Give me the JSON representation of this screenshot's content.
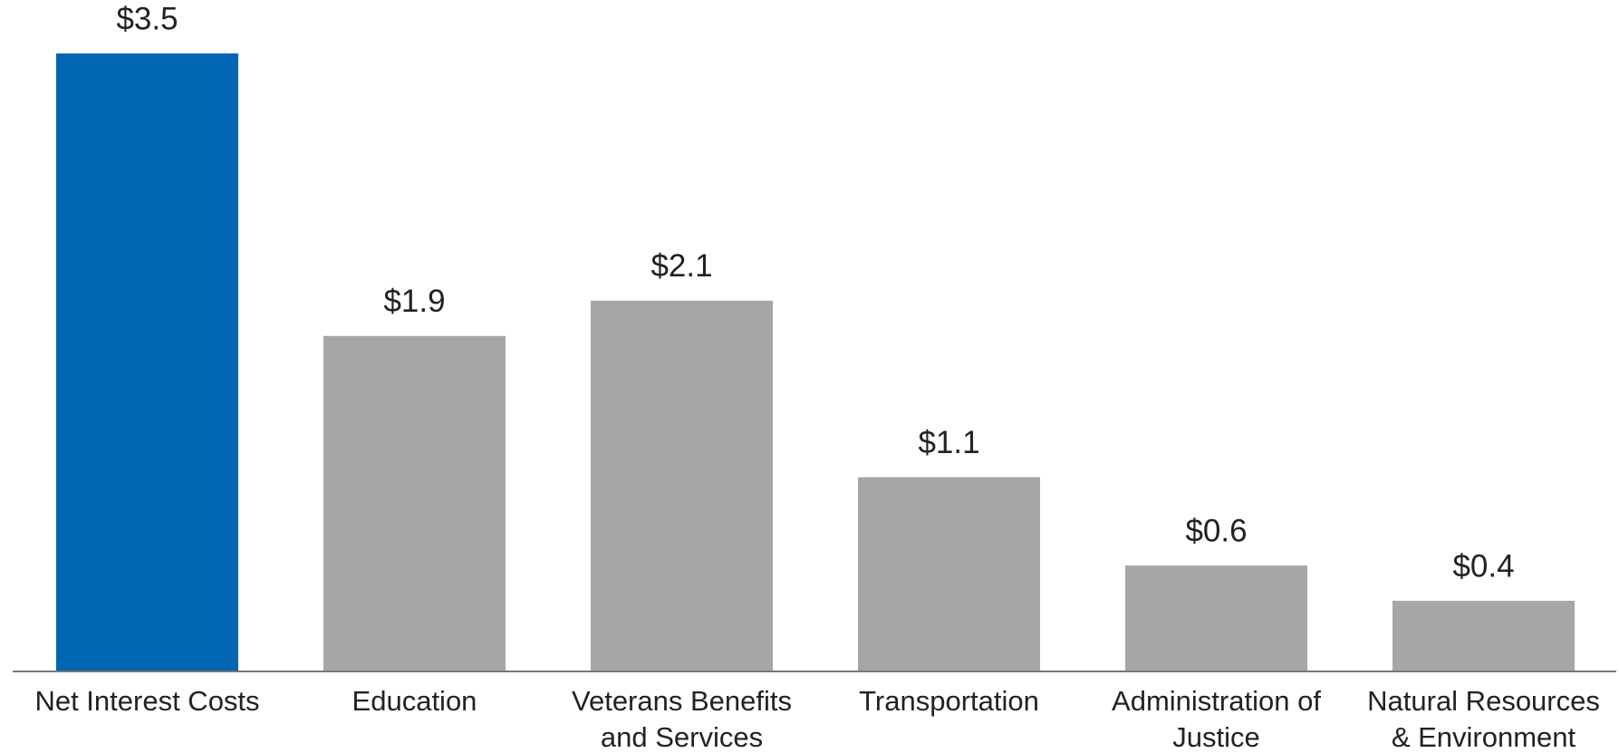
{
  "chart_data": {
    "type": "bar",
    "categories": [
      [
        "Net Interest Costs"
      ],
      [
        "Education"
      ],
      [
        "Veterans Benefits",
        "and Services"
      ],
      [
        "Transportation"
      ],
      [
        "Administration of",
        "Justice"
      ],
      [
        "Natural Resources",
        "& Environment"
      ]
    ],
    "values": [
      3.5,
      1.9,
      2.1,
      1.1,
      0.6,
      0.4
    ],
    "value_labels": [
      "$3.5",
      "$1.9",
      "$2.1",
      "$1.1",
      "$0.6",
      "$0.4"
    ],
    "colors": [
      "#0066b3",
      "#a6a6a6",
      "#a6a6a6",
      "#a6a6a6",
      "#a6a6a6",
      "#a6a6a6"
    ],
    "grid": false
  }
}
